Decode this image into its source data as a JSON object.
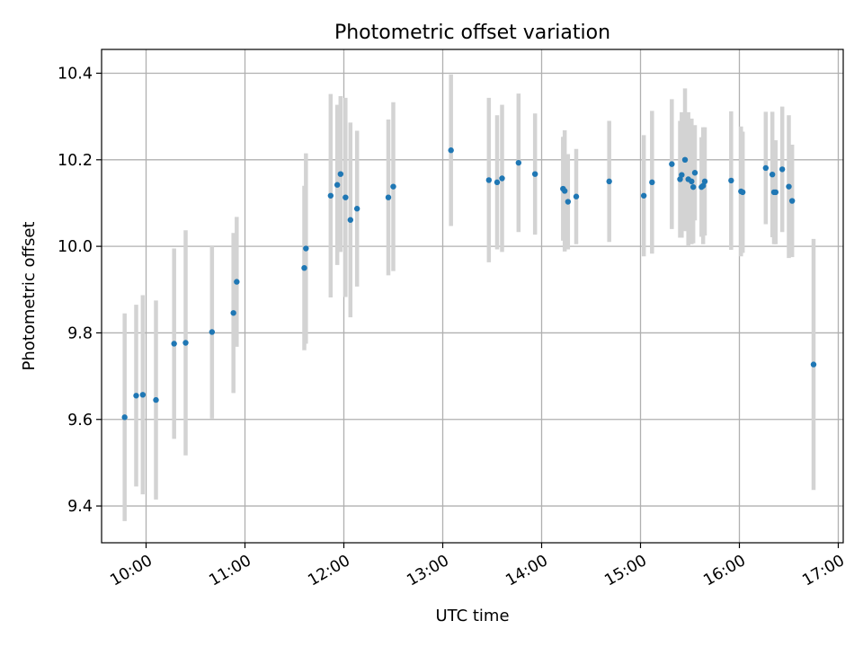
{
  "chart_data": {
    "type": "scatter",
    "title": "Photometric offset variation",
    "xlabel": "UTC time",
    "ylabel": "Photometric offset",
    "grid": true,
    "xlim": [
      "09:33",
      "17:03"
    ],
    "ylim": [
      9.315,
      10.455
    ],
    "x_ticks": [
      "10:00",
      "11:00",
      "12:00",
      "13:00",
      "14:00",
      "15:00",
      "16:00",
      "17:00"
    ],
    "y_ticks": [
      "9.4",
      "9.6",
      "9.8",
      "10.0",
      "10.2",
      "10.4"
    ],
    "errorbar_color": "#d3d3d3",
    "marker_color": "#1f77b4",
    "series": [
      {
        "x": [
          "09:47",
          "09:54",
          "09:58",
          "10:06",
          "10:17",
          "10:24",
          "10:40",
          "10:53",
          "10:55",
          "11:36",
          "11:37",
          "11:52",
          "11:56",
          "11:58",
          "12:01",
          "12:04",
          "12:08",
          "12:27",
          "12:30",
          "13:05",
          "13:28",
          "13:33",
          "13:36",
          "13:46",
          "13:56",
          "14:13",
          "14:14",
          "14:16",
          "14:21",
          "14:41",
          "15:02",
          "15:07",
          "15:19",
          "15:24",
          "15:25",
          "15:27",
          "15:29",
          "15:31",
          "15:32",
          "15:33",
          "15:37",
          "15:38",
          "15:39",
          "15:55",
          "16:01",
          "16:02",
          "16:16",
          "16:20",
          "16:21",
          "16:22",
          "16:26",
          "16:30",
          "16:32",
          "16:45"
        ],
        "y": [
          9.605,
          9.655,
          9.657,
          9.645,
          9.775,
          9.777,
          9.802,
          9.846,
          9.918,
          9.95,
          9.995,
          10.117,
          10.142,
          10.167,
          10.113,
          10.061,
          10.087,
          10.113,
          10.138,
          10.222,
          10.153,
          10.148,
          10.157,
          10.193,
          10.167,
          10.133,
          10.128,
          10.103,
          10.115,
          10.15,
          10.117,
          10.148,
          10.19,
          10.155,
          10.165,
          10.2,
          10.155,
          10.15,
          10.137,
          10.17,
          10.137,
          10.14,
          10.15,
          10.152,
          10.127,
          10.125,
          10.181,
          10.166,
          10.125,
          10.125,
          10.178,
          10.138,
          10.105,
          9.727
        ],
        "yerr": [
          0.24,
          0.21,
          0.23,
          0.23,
          0.22,
          0.26,
          0.2,
          0.185,
          0.15,
          0.19,
          0.22,
          0.235,
          0.185,
          0.18,
          0.23,
          0.225,
          0.18,
          0.18,
          0.195,
          0.175,
          0.19,
          0.155,
          0.17,
          0.16,
          0.14,
          0.12,
          0.14,
          0.11,
          0.11,
          0.14,
          0.14,
          0.165,
          0.15,
          0.135,
          0.145,
          0.165,
          0.155,
          0.145,
          0.13,
          0.11,
          0.115,
          0.135,
          0.125,
          0.16,
          0.15,
          0.14,
          0.13,
          0.145,
          0.12,
          0.12,
          0.145,
          0.165,
          0.13,
          0.29
        ]
      }
    ]
  }
}
